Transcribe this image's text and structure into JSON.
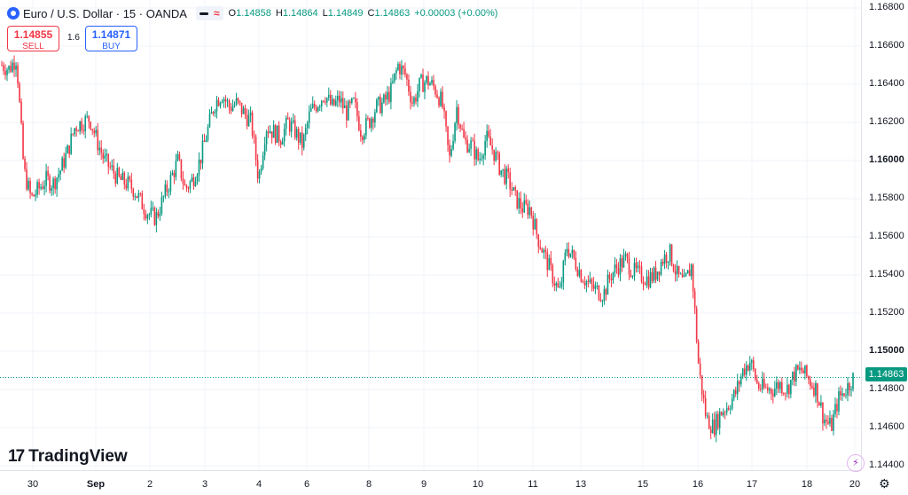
{
  "legend": {
    "title": "Euro / U.S. Dollar · 15 · OANDA",
    "symbol_icon": "euro-dollar-flag-icon",
    "open_key": "O",
    "open": "1.14858",
    "high_key": "H",
    "high": "1.14864",
    "low_key": "L",
    "low": "1.14849",
    "close_key": "C",
    "close": "1.14863",
    "change": "+0.00003 (+0.00%)"
  },
  "trade": {
    "sell_price": "1.14855",
    "sell_label": "SELL",
    "spread": "1.6",
    "buy_price": "1.14871",
    "buy_label": "BUY"
  },
  "last_price": "1.14863",
  "brand": "TradingView",
  "colors": {
    "up": "#089981",
    "down": "#f23645",
    "grid": "#f0f3fa",
    "accent": "#2962ff"
  },
  "chart_data": {
    "type": "candlestick",
    "y_range": [
      1.1438,
      1.1688
    ],
    "y_ticks": [
      "1.16800",
      "1.16600",
      "1.16400",
      "1.16200",
      "1.16000",
      "1.15800",
      "1.15600",
      "1.15400",
      "1.15200",
      "1.15000",
      "1.14800",
      "1.14600",
      "1.14400"
    ],
    "y_ticks_bold": [
      "1.16000",
      "1.15000"
    ],
    "x_ticks": [
      "30",
      "Sep",
      "2",
      "3",
      "4",
      "6",
      "8",
      "9",
      "10",
      "11",
      "13",
      "15",
      "16",
      "17",
      "18",
      "20"
    ],
    "x_ticks_bold": [
      "Sep"
    ],
    "path": [
      1.165,
      1.1648,
      1.1654,
      1.1595,
      1.158,
      1.1585,
      1.159,
      1.1588,
      1.1595,
      1.1605,
      1.1618,
      1.162,
      1.1622,
      1.161,
      1.16,
      1.1595,
      1.159,
      1.1588,
      1.1585,
      1.1578,
      1.1572,
      1.157,
      1.158,
      1.159,
      1.16,
      1.1585,
      1.159,
      1.16,
      1.1615,
      1.163,
      1.1635,
      1.1628,
      1.163,
      1.1625,
      1.162,
      1.159,
      1.1618,
      1.1615,
      1.1612,
      1.162,
      1.1615,
      1.1608,
      1.1625,
      1.163,
      1.1635,
      1.1628,
      1.1632,
      1.1625,
      1.163,
      1.1615,
      1.162,
      1.1628,
      1.163,
      1.1636,
      1.165,
      1.1645,
      1.163,
      1.164,
      1.1642,
      1.1638,
      1.163,
      1.16,
      1.1628,
      1.161,
      1.1608,
      1.16,
      1.1612,
      1.1605,
      1.1595,
      1.159,
      1.158,
      1.1575,
      1.1575,
      1.156,
      1.155,
      1.154,
      1.153,
      1.1555,
      1.1548,
      1.154,
      1.1535,
      1.1532,
      1.153,
      1.154,
      1.1545,
      1.1548,
      1.1542,
      1.154,
      1.1538,
      1.154,
      1.1548,
      1.1552,
      1.154,
      1.1535,
      1.1545,
      1.149,
      1.1465,
      1.146,
      1.1468,
      1.1472,
      1.1478,
      1.149,
      1.1495,
      1.1482,
      1.148,
      1.148,
      1.1483,
      1.148,
      1.1488,
      1.149,
      1.1485,
      1.148,
      1.1465,
      1.146,
      1.1475,
      1.148,
      1.1486
    ]
  }
}
